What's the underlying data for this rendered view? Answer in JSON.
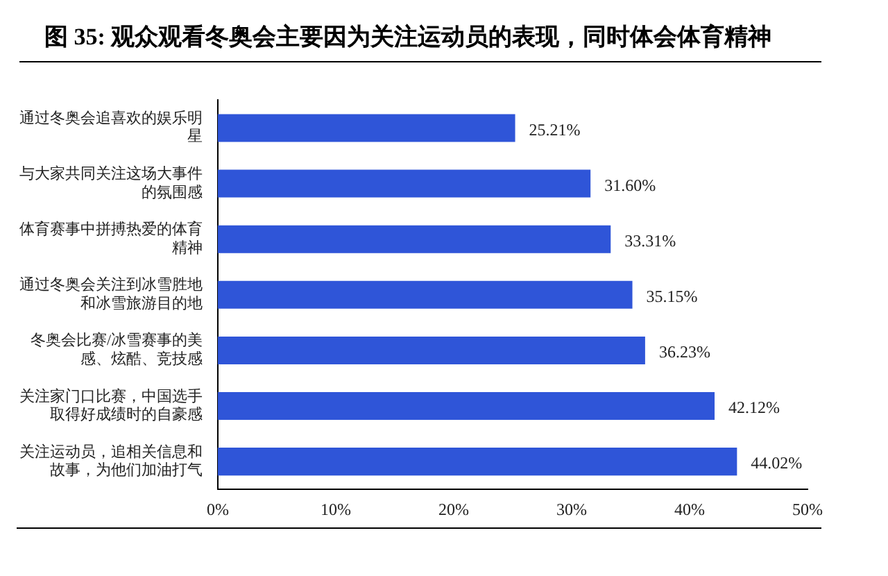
{
  "chart_data": {
    "type": "bar",
    "orientation": "horizontal",
    "title": "图  35: 观众观看冬奥会主要因为关注运动员的表现，同时体会体育精神",
    "categories": [
      "通过冬奥会追喜欢的娱乐明星",
      "与大家共同关注这场大事件的氛围感",
      "体育赛事中拼搏热爱的体育精神",
      "通过冬奥会关注到冰雪胜地和冰雪旅游目的地",
      "冬奥会比赛/冰雪赛事的美感、炫酷、竞技感",
      "关注家门口比赛，中国选手取得好成绩时的自豪感",
      "关注运动员，追相关信息和故事，为他们加油打气"
    ],
    "values": [
      25.21,
      31.6,
      33.31,
      35.15,
      36.23,
      42.12,
      44.02
    ],
    "value_labels": [
      "25.21%",
      "31.60%",
      "33.31%",
      "35.15%",
      "36.23%",
      "42.12%",
      "44.02%"
    ],
    "color": "#2f55d8",
    "xlim": [
      0,
      50
    ],
    "xticks": [
      {
        "value": 0,
        "label": "0%"
      },
      {
        "value": 10,
        "label": "10%"
      },
      {
        "value": 20,
        "label": "20%"
      },
      {
        "value": 30,
        "label": "30%"
      },
      {
        "value": 40,
        "label": "40%"
      },
      {
        "value": 50,
        "label": "50%"
      }
    ],
    "grid": false,
    "legend": false
  }
}
